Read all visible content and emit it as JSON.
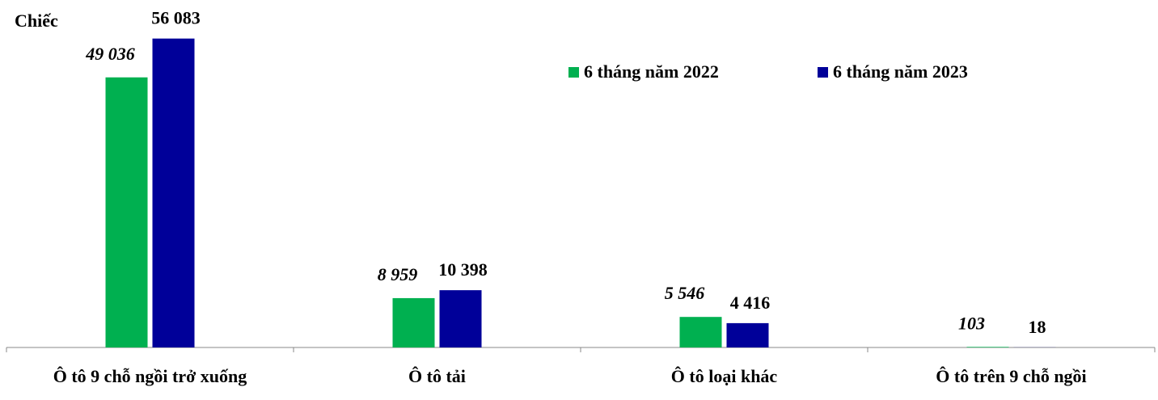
{
  "chart_data": {
    "type": "bar",
    "y_label": "Chiếc",
    "categories": [
      "Ô tô 9 chỗ ngồi trở xuống",
      "Ô tô tải",
      "Ô tô loại khác",
      "Ô tô trên 9 chỗ ngồi"
    ],
    "series": [
      {
        "name": "6 tháng năm 2022",
        "color": "#00b050",
        "values": [
          49036,
          8959,
          5546,
          103
        ],
        "value_labels": [
          "49 036",
          "8 959",
          "5 546",
          "103"
        ],
        "label_style": "italic"
      },
      {
        "name": "6 tháng năm 2023",
        "color": "#000099",
        "values": [
          56083,
          10398,
          4416,
          18
        ],
        "value_labels": [
          "56 083",
          "10 398",
          "4 416",
          "18"
        ],
        "label_style": "normal"
      }
    ],
    "ylim": [
      0,
      60000
    ]
  }
}
